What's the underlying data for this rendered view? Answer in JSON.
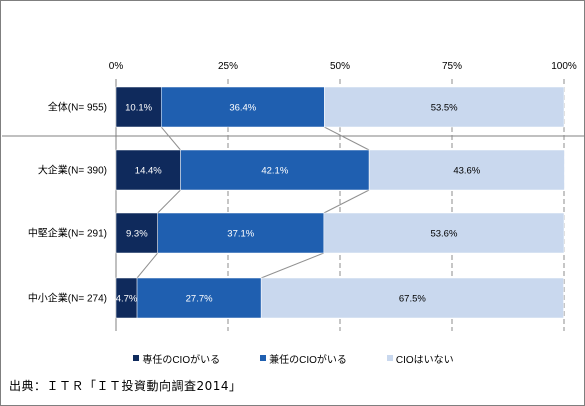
{
  "chart_data": {
    "type": "bar",
    "orientation": "horizontal",
    "stacked": true,
    "percent_stacked": true,
    "categories": [
      "全体(N= 955)",
      "大企業(N= 390)",
      "中堅企業(N= 291)",
      "中小企業(N= 274)"
    ],
    "series": [
      {
        "name": "専任のCIOがいる",
        "values": [
          10.1,
          14.4,
          9.3,
          4.7
        ],
        "labels": [
          "10.1%",
          "14.4%",
          "9.3%",
          "4.7%"
        ],
        "color": "#0f2a5c",
        "label_color": "#ffffff"
      },
      {
        "name": "兼任のCIOがいる",
        "values": [
          36.4,
          42.1,
          37.1,
          27.7
        ],
        "labels": [
          "36.4%",
          "42.1%",
          "37.1%",
          "27.7%"
        ],
        "color": "#1f5fb0",
        "label_color": "#ffffff"
      },
      {
        "name": "CIOはいない",
        "values": [
          53.5,
          43.6,
          53.6,
          67.5
        ],
        "labels": [
          "53.5%",
          "43.6%",
          "53.6%",
          "67.5%"
        ],
        "color": "#c9d8ee",
        "label_color": "#000000"
      }
    ],
    "xlim": [
      0,
      100
    ],
    "xticks": [
      "0%",
      "25%",
      "50%",
      "75%",
      "100%"
    ],
    "grid": "vertical dashed",
    "legend_position": "bottom",
    "series_lines": true
  },
  "legend": [
    {
      "label": "専任のCIOがいる",
      "color": "#0f2a5c"
    },
    {
      "label": "兼任のCIOがいる",
      "color": "#1f5fb0"
    },
    {
      "label": "CIOはいない",
      "color": "#c9d8ee"
    }
  ],
  "source": "出典：ＩＴＲ「ＩＴ投資動向調査2014」"
}
